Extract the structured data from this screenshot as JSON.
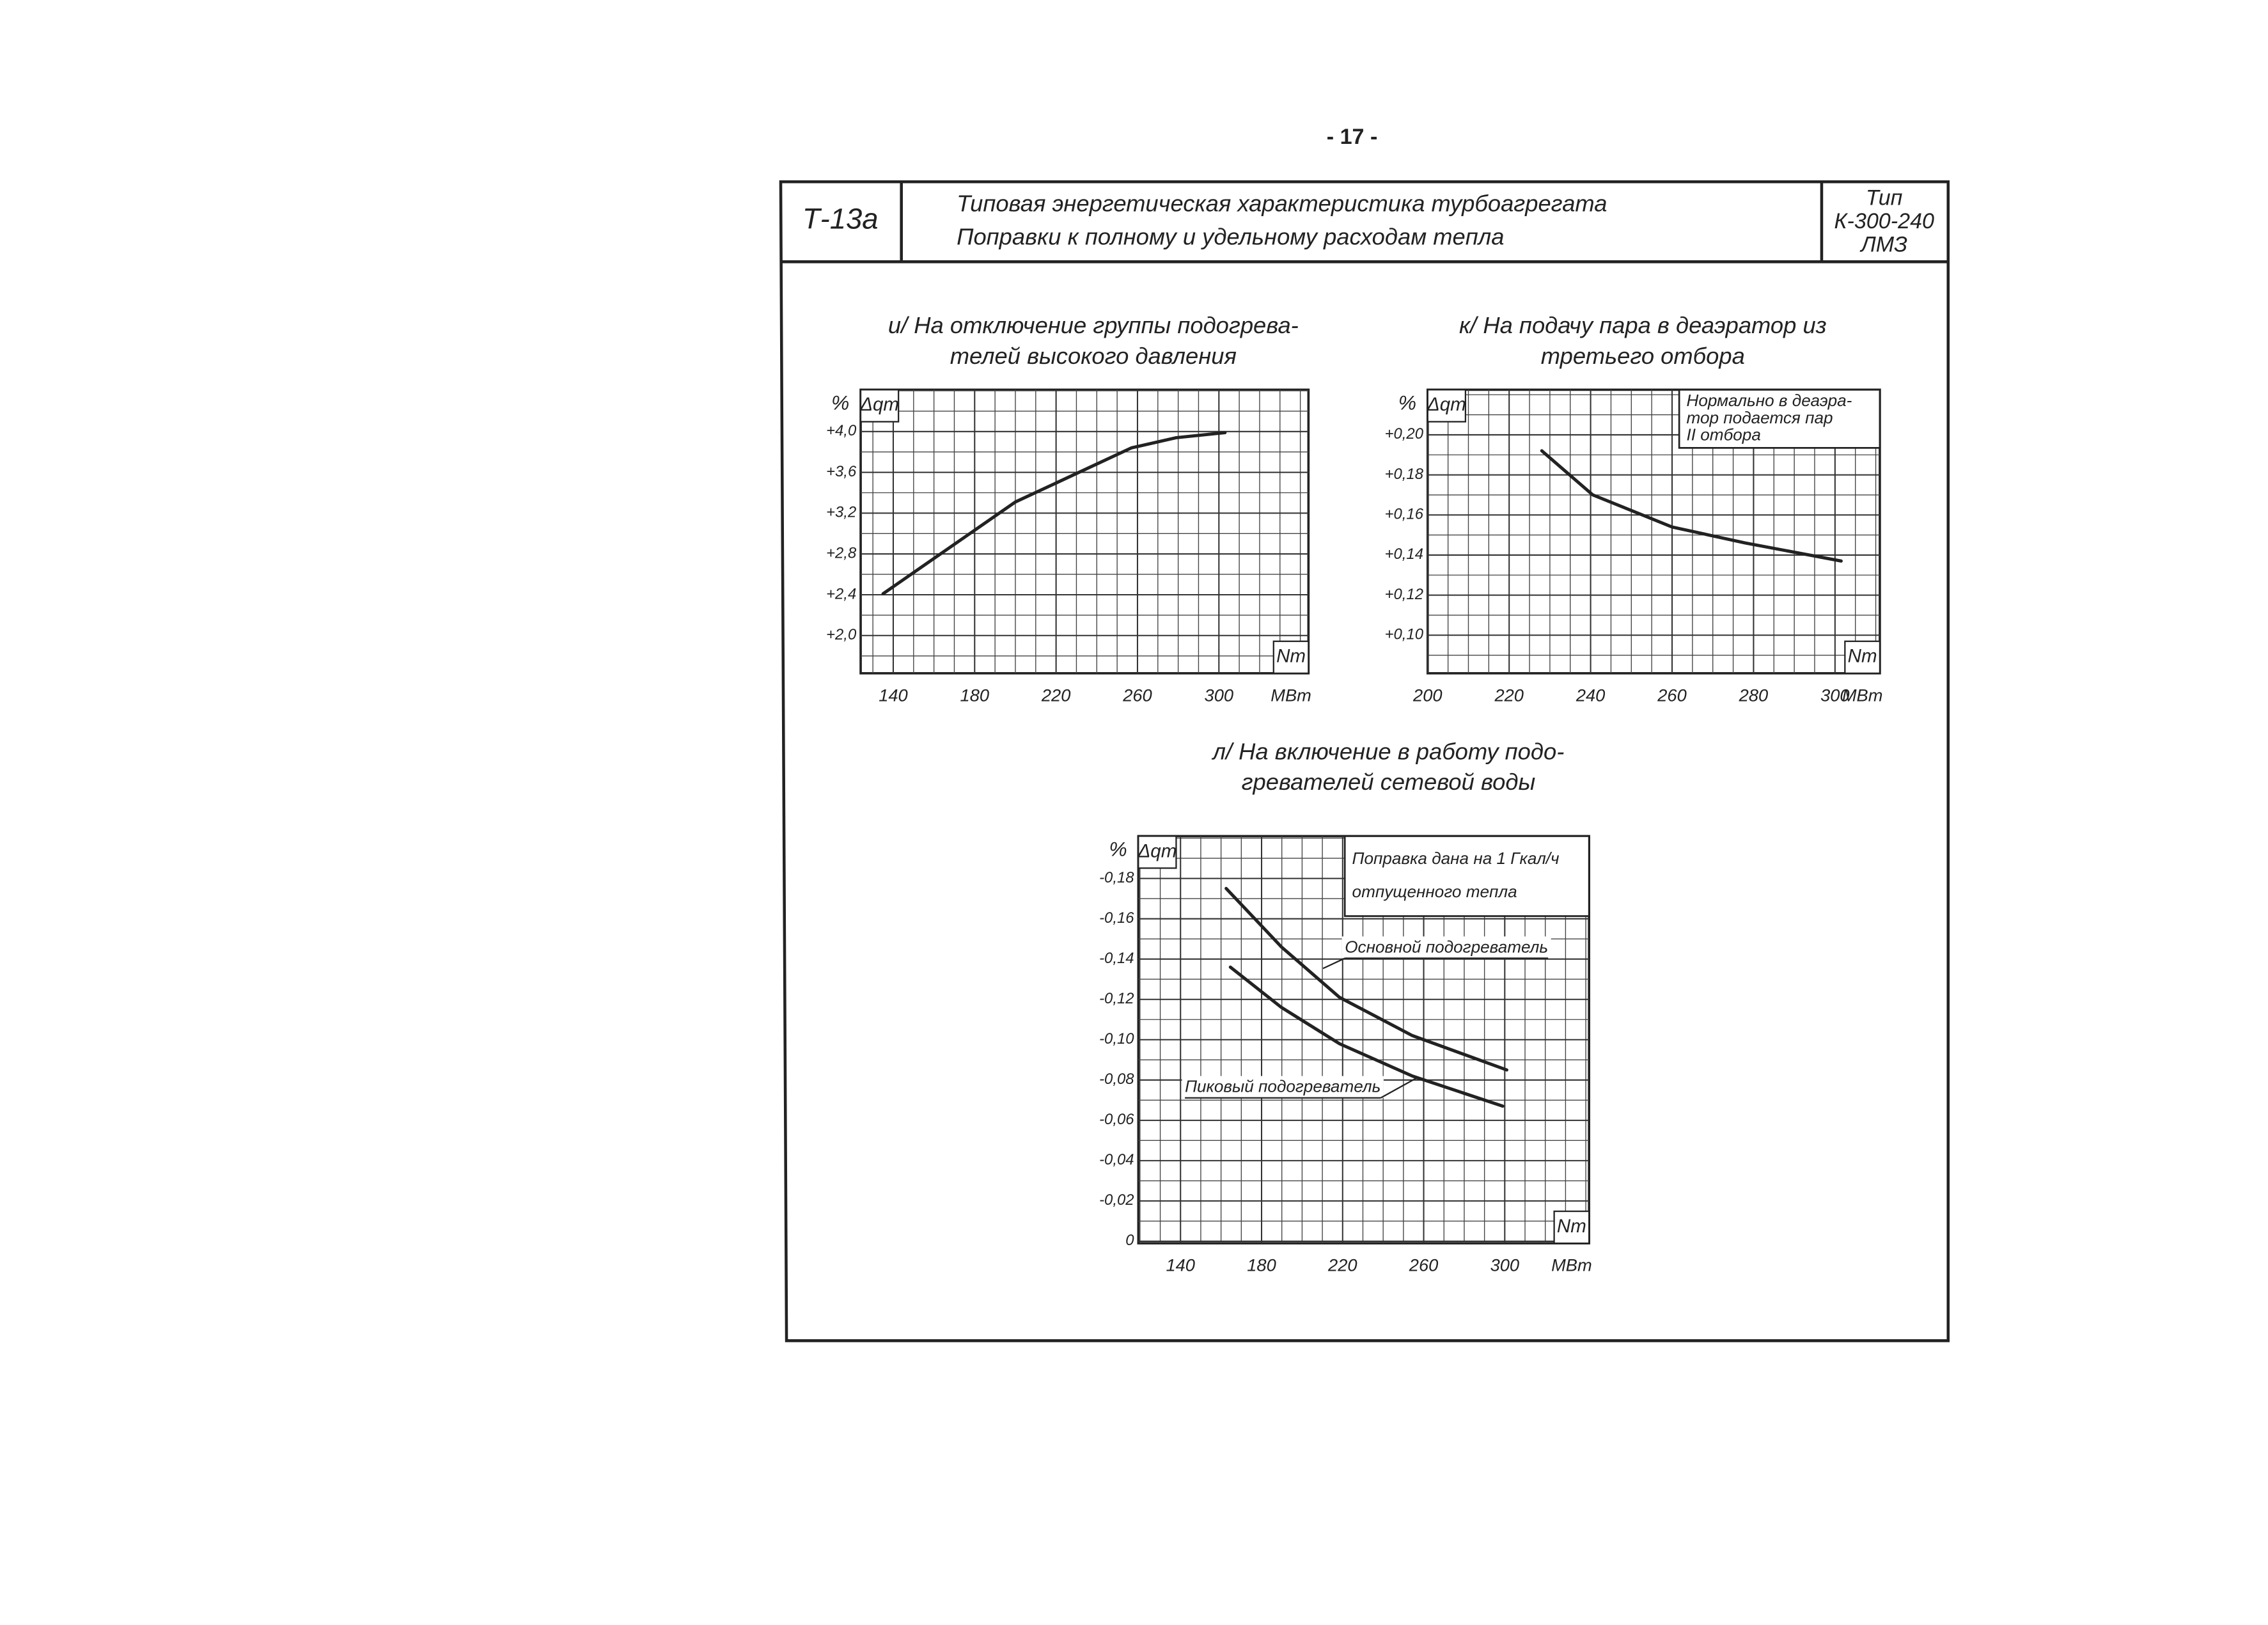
{
  "page_number": "- 17 -",
  "header": {
    "code": "Т-13а",
    "title": [
      "Типовая энергетическая характеристика турбоагрегата",
      "Поправки к полному и удельному расходам тепла"
    ],
    "type": [
      "Тип",
      "К-300-240",
      "ЛМЗ"
    ]
  },
  "chart_data": [
    {
      "type": "line",
      "title": [
        "и/ На отключение группы подогрева-",
        "телей высокого давления"
      ],
      "y_unit": "%",
      "y_label": "Δqт",
      "x_label": "Nт",
      "x_unit": "МВт",
      "grid": true,
      "xlim": [
        124,
        344
      ],
      "ylim": [
        1.63,
        4.41
      ],
      "xticks": [
        140,
        180,
        220,
        260,
        300
      ],
      "yticks": [
        {
          "value": 4.0,
          "label": "+4,0"
        },
        {
          "value": 3.6,
          "label": "+3,6"
        },
        {
          "value": 3.2,
          "label": "+3,2"
        },
        {
          "value": 2.8,
          "label": "+2,8"
        },
        {
          "value": 2.4,
          "label": "+2,4"
        },
        {
          "value": 2.0,
          "label": "+2,0"
        }
      ],
      "series": [
        {
          "color": "#222222",
          "x": [
            135,
            200,
            257,
            279,
            303
          ],
          "values": [
            2.41,
            3.31,
            3.84,
            3.94,
            3.99
          ]
        }
      ]
    },
    {
      "type": "line",
      "title": [
        "к/ На подачу пара в деаэратор из",
        "третьего отбора"
      ],
      "y_unit": "%",
      "y_label": "Δqт",
      "x_label": "Nт",
      "x_unit": "МВт",
      "grid": true,
      "xlim": [
        200,
        311
      ],
      "ylim": [
        0.081,
        0.2225
      ],
      "xticks": [
        200,
        220,
        240,
        260,
        280,
        300
      ],
      "yticks": [
        {
          "value": 0.2,
          "label": "+0,20"
        },
        {
          "value": 0.18,
          "label": "+0,18"
        },
        {
          "value": 0.16,
          "label": "+0,16"
        },
        {
          "value": 0.14,
          "label": "+0,14"
        },
        {
          "value": 0.12,
          "label": "+0,12"
        },
        {
          "value": 0.1,
          "label": "+0,10"
        }
      ],
      "note": [
        "Нормально в деаэра-",
        "тор подается пар",
        "II отбора"
      ],
      "series": [
        {
          "color": "#222222",
          "x": [
            228,
            240.5,
            260,
            278,
            301.5
          ],
          "values": [
            0.192,
            0.17,
            0.154,
            0.146,
            0.137
          ]
        }
      ]
    },
    {
      "type": "line",
      "title": [
        "л/ На включение в работу подо-",
        "гревателей сетевой воды"
      ],
      "y_unit": "%",
      "y_label": "Δqт",
      "x_label": "Nт",
      "x_unit": "МВт",
      "grid": true,
      "xlim": [
        119.2,
        341.6
      ],
      "ylim": [
        0.001,
        -0.201
      ],
      "xticks": [
        140,
        180,
        220,
        260,
        300
      ],
      "yticks": [
        {
          "value": -0.18,
          "label": "-0,18"
        },
        {
          "value": -0.16,
          "label": "-0,16"
        },
        {
          "value": -0.14,
          "label": "-0,14"
        },
        {
          "value": -0.12,
          "label": "-0,12"
        },
        {
          "value": -0.1,
          "label": "-0,10"
        },
        {
          "value": -0.08,
          "label": "-0,08"
        },
        {
          "value": -0.06,
          "label": "-0,06"
        },
        {
          "value": -0.04,
          "label": "-0,04"
        },
        {
          "value": -0.02,
          "label": "-0,02"
        },
        0
      ],
      "note": [
        "Поправка дана на 1 Гкал/ч",
        "отпущенного тепла"
      ],
      "series": [
        {
          "name": "Основной подогреватель",
          "color": "#222222",
          "x": [
            162.5,
            189.8,
            218.5,
            254.4,
            301
          ],
          "values": [
            -0.175,
            -0.146,
            -0.121,
            -0.102,
            -0.085
          ]
        },
        {
          "name": "Пиковый подогреватель",
          "color": "#222222",
          "x": [
            164.6,
            189.8,
            218.5,
            254.4,
            299
          ],
          "values": [
            -0.136,
            -0.116,
            -0.098,
            -0.082,
            -0.067
          ]
        }
      ]
    }
  ]
}
